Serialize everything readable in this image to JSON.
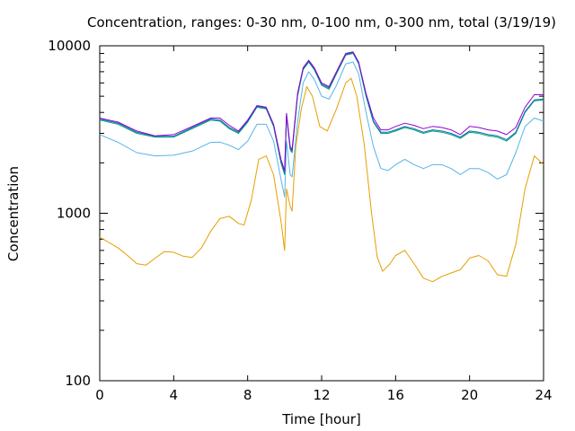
{
  "chart_data": {
    "type": "line",
    "title": "Concentration, ranges: 0-30 nm, 0-100 nm, 0-300 nm, total (3/19/19)",
    "xlabel": "Time [hour]",
    "ylabel": "Concentration",
    "xlim": [
      0,
      24
    ],
    "ylim": [
      100,
      10000
    ],
    "yscale": "log",
    "grid": false,
    "legend": "none",
    "x_ticks": [
      0,
      4,
      8,
      12,
      16,
      20,
      24
    ],
    "x_tick_labels": [
      "0",
      "4",
      "8",
      "12",
      "16",
      "20",
      "24"
    ],
    "y_ticks": [
      100,
      1000,
      10000
    ],
    "y_tick_labels": [
      "100",
      "1000",
      "10000"
    ],
    "series": [
      {
        "color": "#e69f00",
        "points": [
          [
            0,
            720
          ],
          [
            1,
            620
          ],
          [
            1.5,
            560
          ],
          [
            2,
            500
          ],
          [
            2.5,
            490
          ],
          [
            3,
            540
          ],
          [
            3.5,
            590
          ],
          [
            4,
            585
          ],
          [
            4.5,
            555
          ],
          [
            5,
            545
          ],
          [
            5.5,
            620
          ],
          [
            6,
            780
          ],
          [
            6.5,
            930
          ],
          [
            7,
            960
          ],
          [
            7.5,
            870
          ],
          [
            7.8,
            850
          ],
          [
            8.2,
            1200
          ],
          [
            8.6,
            2100
          ],
          [
            9,
            2200
          ],
          [
            9.4,
            1700
          ],
          [
            9.8,
            900
          ],
          [
            10,
            600
          ],
          [
            10.1,
            1400
          ],
          [
            10.3,
            1100
          ],
          [
            10.4,
            1030
          ],
          [
            10.6,
            2500
          ],
          [
            10.9,
            4200
          ],
          [
            11.2,
            5700
          ],
          [
            11.5,
            5000
          ],
          [
            11.9,
            3300
          ],
          [
            12.3,
            3100
          ],
          [
            12.8,
            4200
          ],
          [
            13.3,
            6000
          ],
          [
            13.6,
            6400
          ],
          [
            13.9,
            5000
          ],
          [
            14.3,
            2600
          ],
          [
            14.7,
            1000
          ],
          [
            15,
            550
          ],
          [
            15.3,
            450
          ],
          [
            15.7,
            500
          ],
          [
            16,
            560
          ],
          [
            16.5,
            600
          ],
          [
            17,
            500
          ],
          [
            17.5,
            410
          ],
          [
            18,
            390
          ],
          [
            18.5,
            420
          ],
          [
            19,
            440
          ],
          [
            19.5,
            460
          ],
          [
            20,
            540
          ],
          [
            20.5,
            560
          ],
          [
            21,
            520
          ],
          [
            21.5,
            430
          ],
          [
            22,
            420
          ],
          [
            22.5,
            650
          ],
          [
            23,
            1400
          ],
          [
            23.5,
            2200
          ],
          [
            24,
            1950
          ]
        ]
      },
      {
        "color": "#56b4e9",
        "points": [
          [
            0,
            2950
          ],
          [
            1,
            2650
          ],
          [
            2,
            2300
          ],
          [
            3,
            2200
          ],
          [
            4,
            2220
          ],
          [
            5,
            2350
          ],
          [
            6,
            2650
          ],
          [
            6.5,
            2660
          ],
          [
            7,
            2550
          ],
          [
            7.5,
            2400
          ],
          [
            8,
            2700
          ],
          [
            8.5,
            3400
          ],
          [
            9,
            3400
          ],
          [
            9.4,
            2700
          ],
          [
            9.8,
            1600
          ],
          [
            10,
            1250
          ],
          [
            10.1,
            2700
          ],
          [
            10.3,
            1700
          ],
          [
            10.4,
            1650
          ],
          [
            10.7,
            3500
          ],
          [
            11,
            6000
          ],
          [
            11.3,
            7000
          ],
          [
            11.6,
            6300
          ],
          [
            12,
            5000
          ],
          [
            12.4,
            4800
          ],
          [
            12.8,
            5800
          ],
          [
            13.3,
            7800
          ],
          [
            13.7,
            8000
          ],
          [
            14,
            6800
          ],
          [
            14.4,
            4000
          ],
          [
            14.8,
            2500
          ],
          [
            15.2,
            1850
          ],
          [
            15.6,
            1800
          ],
          [
            16,
            1950
          ],
          [
            16.5,
            2100
          ],
          [
            17,
            1950
          ],
          [
            17.5,
            1850
          ],
          [
            18,
            1950
          ],
          [
            18.5,
            1950
          ],
          [
            19,
            1850
          ],
          [
            19.5,
            1700
          ],
          [
            20,
            1850
          ],
          [
            20.5,
            1850
          ],
          [
            21,
            1750
          ],
          [
            21.5,
            1600
          ],
          [
            22,
            1700
          ],
          [
            22.5,
            2300
          ],
          [
            23,
            3300
          ],
          [
            23.5,
            3700
          ],
          [
            24,
            3550
          ]
        ]
      },
      {
        "color": "#009e73",
        "points": [
          [
            0,
            3600
          ],
          [
            1,
            3400
          ],
          [
            2,
            3000
          ],
          [
            3,
            2850
          ],
          [
            4,
            2850
          ],
          [
            5,
            3200
          ],
          [
            6,
            3600
          ],
          [
            6.5,
            3550
          ],
          [
            7,
            3200
          ],
          [
            7.5,
            3000
          ],
          [
            8,
            3500
          ],
          [
            8.5,
            4300
          ],
          [
            9,
            4200
          ],
          [
            9.4,
            3300
          ],
          [
            9.8,
            2000
          ],
          [
            10,
            1700
          ],
          [
            10.1,
            3800
          ],
          [
            10.3,
            2400
          ],
          [
            10.4,
            2300
          ],
          [
            10.7,
            5000
          ],
          [
            11,
            7200
          ],
          [
            11.3,
            8000
          ],
          [
            11.6,
            7200
          ],
          [
            12,
            5800
          ],
          [
            12.4,
            5500
          ],
          [
            12.8,
            6800
          ],
          [
            13.3,
            8800
          ],
          [
            13.7,
            9000
          ],
          [
            14,
            7800
          ],
          [
            14.4,
            5000
          ],
          [
            14.8,
            3500
          ],
          [
            15.2,
            3000
          ],
          [
            15.6,
            3000
          ],
          [
            16,
            3100
          ],
          [
            16.5,
            3250
          ],
          [
            17,
            3150
          ],
          [
            17.5,
            3000
          ],
          [
            18,
            3100
          ],
          [
            18.5,
            3050
          ],
          [
            19,
            2950
          ],
          [
            19.5,
            2800
          ],
          [
            20,
            3050
          ],
          [
            20.5,
            3000
          ],
          [
            21,
            2900
          ],
          [
            21.5,
            2850
          ],
          [
            22,
            2700
          ],
          [
            22.5,
            3000
          ],
          [
            23,
            4000
          ],
          [
            23.5,
            4700
          ],
          [
            24,
            4750
          ]
        ]
      },
      {
        "color": "#0072b2",
        "points": [
          [
            0,
            3650
          ],
          [
            1,
            3450
          ],
          [
            2,
            3050
          ],
          [
            3,
            2880
          ],
          [
            4,
            2880
          ],
          [
            5,
            3250
          ],
          [
            6,
            3650
          ],
          [
            6.5,
            3600
          ],
          [
            7,
            3250
          ],
          [
            7.5,
            3050
          ],
          [
            8,
            3550
          ],
          [
            8.5,
            4350
          ],
          [
            9,
            4250
          ],
          [
            9.4,
            3350
          ],
          [
            9.8,
            2050
          ],
          [
            10,
            1750
          ],
          [
            10.1,
            3900
          ],
          [
            10.3,
            2450
          ],
          [
            10.4,
            2350
          ],
          [
            10.7,
            5100
          ],
          [
            11,
            7300
          ],
          [
            11.3,
            8100
          ],
          [
            11.6,
            7300
          ],
          [
            12,
            5900
          ],
          [
            12.4,
            5600
          ],
          [
            12.8,
            6900
          ],
          [
            13.3,
            8900
          ],
          [
            13.7,
            9100
          ],
          [
            14,
            7900
          ],
          [
            14.4,
            5100
          ],
          [
            14.8,
            3550
          ],
          [
            15.2,
            3050
          ],
          [
            15.6,
            3050
          ],
          [
            16,
            3150
          ],
          [
            16.5,
            3300
          ],
          [
            17,
            3200
          ],
          [
            17.5,
            3050
          ],
          [
            18,
            3150
          ],
          [
            18.5,
            3100
          ],
          [
            19,
            3000
          ],
          [
            19.5,
            2850
          ],
          [
            20,
            3100
          ],
          [
            20.5,
            3050
          ],
          [
            21,
            2950
          ],
          [
            21.5,
            2900
          ],
          [
            22,
            2750
          ],
          [
            22.5,
            3050
          ],
          [
            23,
            4050
          ],
          [
            23.5,
            4750
          ],
          [
            24,
            4800
          ]
        ]
      },
      {
        "color": "#9400d3",
        "points": [
          [
            0,
            3700
          ],
          [
            1,
            3500
          ],
          [
            2,
            3100
          ],
          [
            3,
            2900
          ],
          [
            4,
            2950
          ],
          [
            5,
            3300
          ],
          [
            6,
            3700
          ],
          [
            6.5,
            3700
          ],
          [
            7,
            3350
          ],
          [
            7.5,
            3100
          ],
          [
            8,
            3600
          ],
          [
            8.5,
            4400
          ],
          [
            9,
            4300
          ],
          [
            9.4,
            3400
          ],
          [
            9.8,
            2100
          ],
          [
            10,
            1800
          ],
          [
            10.1,
            3950
          ],
          [
            10.3,
            2500
          ],
          [
            10.4,
            2400
          ],
          [
            10.7,
            5200
          ],
          [
            11,
            7400
          ],
          [
            11.3,
            8200
          ],
          [
            11.6,
            7400
          ],
          [
            12,
            6000
          ],
          [
            12.4,
            5700
          ],
          [
            12.8,
            7000
          ],
          [
            13.3,
            9000
          ],
          [
            13.7,
            9200
          ],
          [
            14,
            8000
          ],
          [
            14.4,
            5200
          ],
          [
            14.8,
            3700
          ],
          [
            15.2,
            3150
          ],
          [
            15.6,
            3150
          ],
          [
            16,
            3300
          ],
          [
            16.5,
            3450
          ],
          [
            17,
            3350
          ],
          [
            17.5,
            3200
          ],
          [
            18,
            3300
          ],
          [
            18.5,
            3250
          ],
          [
            19,
            3150
          ],
          [
            19.5,
            2950
          ],
          [
            20,
            3300
          ],
          [
            20.5,
            3250
          ],
          [
            21,
            3150
          ],
          [
            21.5,
            3100
          ],
          [
            22,
            2950
          ],
          [
            22.5,
            3250
          ],
          [
            23,
            4300
          ],
          [
            23.5,
            5100
          ],
          [
            24,
            5100
          ]
        ]
      }
    ]
  }
}
